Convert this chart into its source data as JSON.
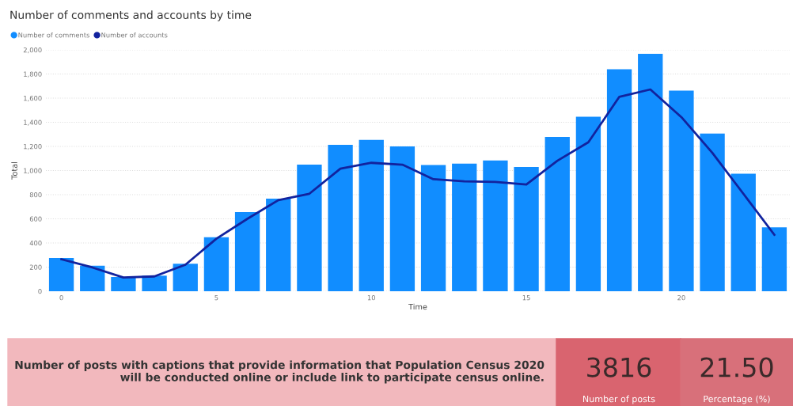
{
  "chart_data": {
    "type": "bar",
    "title": "Number of comments and accounts by time",
    "xlabel": "Time",
    "ylabel": "Total",
    "x": [
      0,
      1,
      2,
      3,
      4,
      5,
      6,
      7,
      8,
      9,
      10,
      11,
      12,
      13,
      14,
      15,
      16,
      17,
      18,
      19,
      20,
      21,
      22,
      23
    ],
    "series": [
      {
        "name": "Number of comments",
        "color": "#118dff",
        "values": [
          275,
          212,
          118,
          129,
          228,
          447,
          655,
          768,
          1049,
          1213,
          1254,
          1200,
          1046,
          1057,
          1083,
          1029,
          1278,
          1446,
          1840,
          1968,
          1663,
          1307,
          974,
          530
        ]
      },
      {
        "name": "Number of accounts",
        "type": "line",
        "color": "#12239e",
        "values": [
          265,
          197,
          114,
          123,
          220,
          435,
          600,
          755,
          808,
          1016,
          1064,
          1049,
          928,
          911,
          906,
          884,
          1081,
          1234,
          1611,
          1672,
          1443,
          1147,
          808,
          468
        ]
      }
    ],
    "xlim": [
      -0.5,
      23.5
    ],
    "xticks": [
      0,
      5,
      10,
      15,
      20
    ],
    "ylim": [
      0,
      2000
    ],
    "yticks": [
      0,
      200,
      400,
      600,
      800,
      {
        "value": 1000,
        "label": "1,000"
      },
      {
        "value": 1200,
        "label": "1,200"
      },
      {
        "value": 1400,
        "label": "1,400"
      },
      {
        "value": 1600,
        "label": "1,600"
      },
      {
        "value": 1800,
        "label": "1,800"
      },
      {
        "value": 2000,
        "label": "2,000"
      }
    ],
    "grid": "y",
    "legend": "top left",
    "marker": "none",
    "line_style": "solid",
    "annotations": [
      "Number of posts with captions that provide information that Population Census 2020 will be conducted online or include link to participate census online.",
      "3816",
      "Number of posts",
      "21.50",
      "Percentage (%)"
    ]
  }
}
